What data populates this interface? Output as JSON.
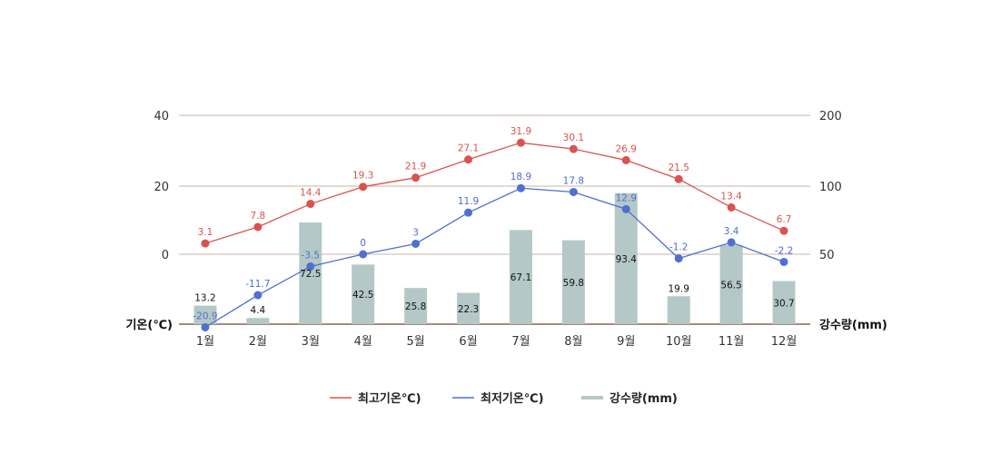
{
  "chart_data": {
    "type": "bar-line-combo",
    "categories": [
      "1월",
      "2월",
      "3월",
      "4월",
      "5월",
      "6월",
      "7월",
      "8월",
      "9월",
      "10월",
      "11월",
      "12월"
    ],
    "series": [
      {
        "name": "최고기온℃)",
        "type": "line",
        "axis": "left",
        "color": "#d9534f",
        "values": [
          3.1,
          7.8,
          14.4,
          19.3,
          21.9,
          27.1,
          31.9,
          30.1,
          26.9,
          21.5,
          13.4,
          6.7
        ]
      },
      {
        "name": "최저기온℃)",
        "type": "line",
        "axis": "left",
        "color": "#4f6fd1",
        "values": [
          -20.9,
          -11.7,
          -3.5,
          0,
          3,
          11.9,
          18.9,
          17.8,
          12.9,
          -1.2,
          3.4,
          -2.2
        ]
      },
      {
        "name": "강수량(mm)",
        "type": "bar",
        "axis": "right",
        "color": "#b5c8c8",
        "values": [
          13.2,
          4.4,
          72.5,
          42.5,
          25.8,
          22.3,
          67.1,
          59.8,
          93.4,
          19.9,
          56.5,
          30.7
        ]
      }
    ],
    "y_left": {
      "label": "기온(℃)",
      "ticks": [
        "40",
        "20",
        "0"
      ]
    },
    "y_right": {
      "label": "강수량(mm)",
      "ticks": [
        "200",
        "100",
        "50"
      ]
    },
    "grid": true,
    "legend_position": "bottom"
  }
}
